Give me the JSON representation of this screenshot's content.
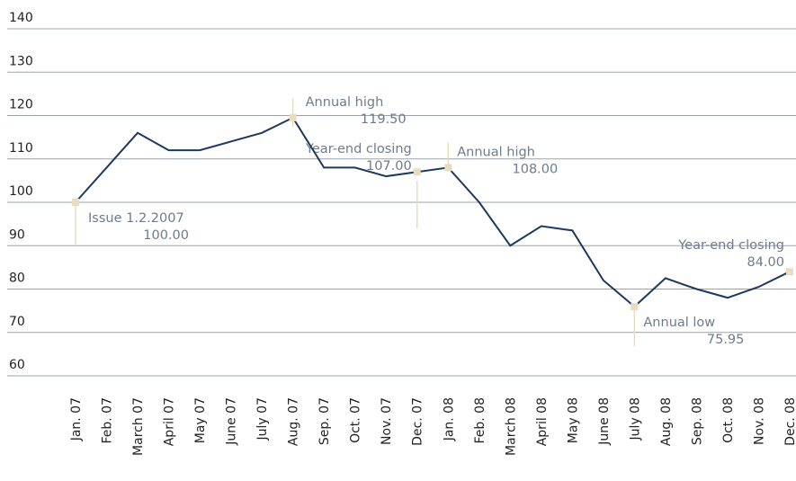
{
  "chart_data": {
    "type": "line",
    "categories": [
      "Jan. 07",
      "Feb. 07",
      "March 07",
      "April 07",
      "May 07",
      "June 07",
      "July 07",
      "Aug. 07",
      "Sep. 07",
      "Oct. 07",
      "Nov. 07",
      "Dec. 07",
      "Jan. 08",
      "Feb. 08",
      "March 08",
      "April 08",
      "May 08",
      "June 08",
      "July 08",
      "Aug. 08",
      "Sep. 08",
      "Oct. 08",
      "Nov. 08",
      "Dec. 08"
    ],
    "series": [
      {
        "color": "#1c3a5f",
        "values": [
          100,
          108,
          116,
          112,
          112,
          114,
          116,
          119.5,
          108,
          108,
          106,
          107,
          108,
          100,
          90,
          94.5,
          93.5,
          82,
          75.95,
          82.5,
          80,
          78,
          80.5,
          84
        ],
        "value_labels": [
          "100.00",
          null,
          null,
          null,
          null,
          null,
          null,
          "119.50",
          null,
          null,
          null,
          "107.00",
          "108.00",
          null,
          null,
          null,
          null,
          null,
          "75.95",
          null,
          null,
          null,
          null,
          "84.00"
        ],
        "annotations": [
          "Issue 1.2.2007",
          null,
          null,
          null,
          null,
          null,
          null,
          "Annual high",
          null,
          null,
          null,
          "Year-end closing",
          "Annual high",
          null,
          null,
          null,
          null,
          null,
          "Annual low",
          null,
          null,
          null,
          null,
          "Year-end closing"
        ]
      }
    ],
    "ylim": [
      55,
      140
    ],
    "yticks": [
      60,
      70,
      80,
      90,
      100,
      110,
      120,
      130,
      140
    ],
    "grid": true,
    "marker_color": "#eadcbf"
  }
}
